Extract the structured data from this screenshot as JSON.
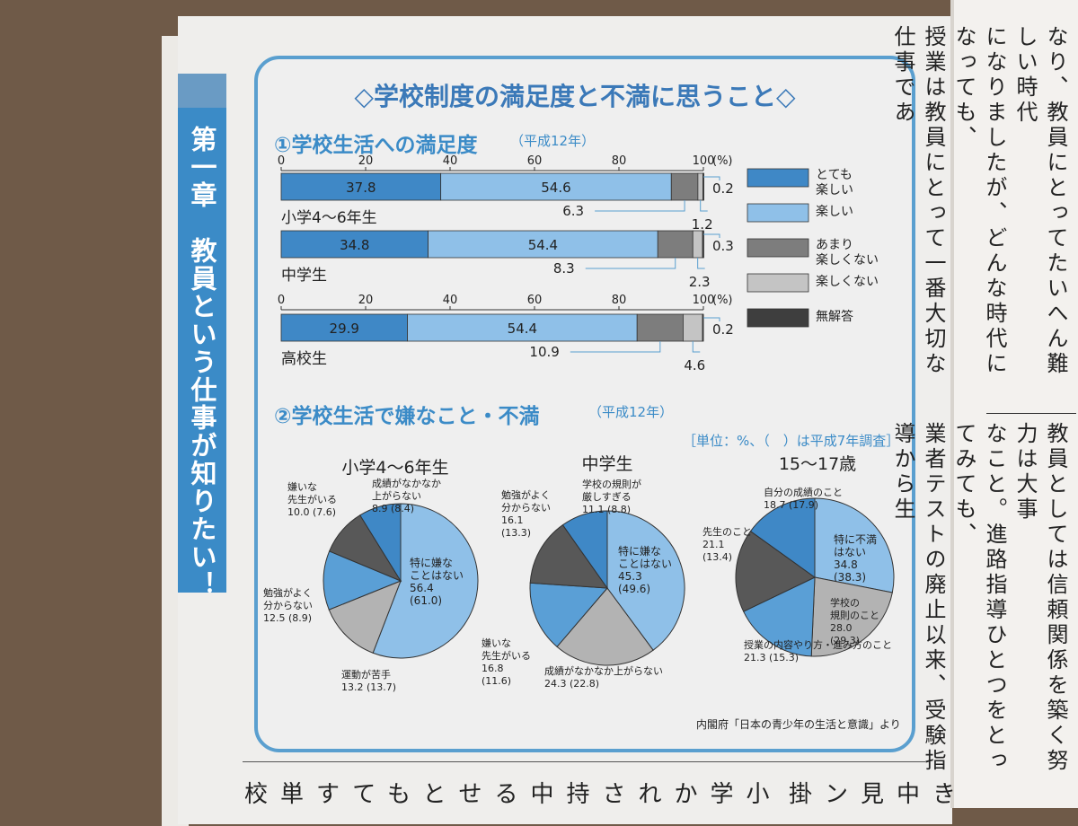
{
  "chapter_tab": {
    "text": "第一章　教員という仕事が知りたい！"
  },
  "main_title": "◇学校制度の満足度と不満に思うこと◇",
  "section1": {
    "title": "①学校生活への満足度",
    "note": "（平成12年）"
  },
  "section2": {
    "title": "②学校生活で嫌なこと・不満",
    "note": "（平成12年）",
    "unit": "［単位：%、（　）は平成7年調査］"
  },
  "source": "内閣府「日本の青少年の生活と意識」より",
  "colors": {
    "s1": "#3f88c6",
    "s2": "#8fc0e8",
    "s3": "#7d7d7d",
    "s4": "#c4c4c4",
    "s5": "#3e3e3e",
    "frame": "#5a9fcf"
  },
  "chart_data": [
    {
      "type": "bar",
      "orientation": "horizontal-stacked",
      "categories": [
        "小学4～6年生",
        "中学生",
        "高校生"
      ],
      "axis_ticks": [
        "0",
        "20",
        "40",
        "60",
        "80",
        "100"
      ],
      "axis_unit": "(%)",
      "xlim": [
        0,
        100
      ],
      "series": [
        {
          "name": "とても楽しい",
          "values": [
            37.8,
            34.8,
            29.9
          ]
        },
        {
          "name": "楽しい",
          "values": [
            54.6,
            54.4,
            54.4
          ]
        },
        {
          "name": "あまり楽しくない",
          "values": [
            6.3,
            8.3,
            10.9
          ]
        },
        {
          "name": "楽しくない",
          "values": [
            1.2,
            2.3,
            4.6
          ]
        },
        {
          "name": "無解答",
          "values": [
            0.2,
            0.3,
            0.2
          ]
        }
      ],
      "legend": [
        "とても楽しい",
        "楽しい",
        "あまり楽しくない",
        "楽しくない",
        "無解答"
      ],
      "legend_lines": [
        [
          "とても",
          "楽しい"
        ],
        [
          "楽しい"
        ],
        [
          "あまり",
          "楽しくない"
        ],
        [
          "楽しくない"
        ],
        [
          "無解答"
        ]
      ],
      "legend_position": "right",
      "value_labels": [
        {
          "inside": [
            "37.8",
            "54.6"
          ],
          "below": "6.3",
          "below_right": "1.2",
          "right": "0.2"
        },
        {
          "inside": [
            "34.8",
            "54.4"
          ],
          "below": "8.3",
          "below_right": "2.3",
          "right": "0.3"
        },
        {
          "inside": [
            "29.9",
            "54.4"
          ],
          "below": "10.9",
          "below_right": "4.6",
          "right": "0.2"
        }
      ]
    },
    {
      "type": "pie",
      "title": "小学4～6年生",
      "slices": [
        {
          "label": "特に嫌なことはない",
          "lines": [
            "特に嫌な",
            "ことはない",
            "56.4",
            "(61.0)"
          ],
          "value": 56.4,
          "prev": 61.0,
          "color": "#8fc0e8"
        },
        {
          "label": "運動が苦手",
          "lines": [
            "運動が苦手",
            "13.2 (13.7)"
          ],
          "value": 13.2,
          "prev": 13.7,
          "color": "#b3b3b3"
        },
        {
          "label": "勉強がよく分からない",
          "lines": [
            "勉強がよく",
            "分からない",
            "12.5 (8.9)"
          ],
          "value": 12.5,
          "prev": 8.9,
          "color": "#5a9fd6"
        },
        {
          "label": "嫌いな先生がいる",
          "lines": [
            "嫌いな",
            "先生がいる",
            "10.0 (7.6)"
          ],
          "value": 10.0,
          "prev": 7.6,
          "color": "#585858"
        },
        {
          "label": "成績がなかなか上がらない",
          "lines": [
            "成績がなかなか",
            "上がらない",
            "8.9 (8.4)"
          ],
          "value": 8.9,
          "prev": 8.4,
          "color": "#3f88c6"
        }
      ]
    },
    {
      "type": "pie",
      "title": "中学生",
      "slices": [
        {
          "label": "特に嫌なことはない",
          "lines": [
            "特に嫌な",
            "ことはない",
            "45.3",
            "(49.6)"
          ],
          "value": 45.3,
          "prev": 49.6,
          "color": "#8fc0e8"
        },
        {
          "label": "成績がなかなか上がらない",
          "lines": [
            "成績がなかなか上がらない",
            "24.3 (22.8)"
          ],
          "value": 24.3,
          "prev": 22.8,
          "color": "#b3b3b3"
        },
        {
          "label": "嫌いな先生がいる",
          "lines": [
            "嫌いな",
            "先生がいる",
            "16.8",
            "(11.6)"
          ],
          "value": 16.8,
          "prev": 11.6,
          "color": "#5a9fd6"
        },
        {
          "label": "勉強がよく分からない",
          "lines": [
            "勉強がよく",
            "分からない",
            "16.1",
            "(13.3)"
          ],
          "value": 16.1,
          "prev": 13.3,
          "color": "#585858"
        },
        {
          "label": "学校の規則が厳しすぎる",
          "lines": [
            "学校の規則が",
            "厳しすぎる",
            "11.1 (8.8)"
          ],
          "value": 11.1,
          "prev": 8.8,
          "color": "#3f88c6"
        }
      ]
    },
    {
      "type": "pie",
      "title": "15～17歳",
      "slices": [
        {
          "label": "特に不満はない",
          "lines": [
            "特に不満",
            "はない",
            "34.8",
            "(38.3)"
          ],
          "value": 34.8,
          "prev": 38.3,
          "color": "#8fc0e8"
        },
        {
          "label": "学校の規則のこと",
          "lines": [
            "学校の",
            "規則のこと",
            "28.0",
            "(29.3)"
          ],
          "value": 28.0,
          "prev": 29.3,
          "color": "#b3b3b3"
        },
        {
          "label": "授業の内容やり方・進み方のこと",
          "lines": [
            "授業の内容やり方・進み方のこと",
            "21.3 (15.3)"
          ],
          "value": 21.3,
          "prev": 15.3,
          "color": "#5a9fd6"
        },
        {
          "label": "先生のこと",
          "lines": [
            "先生のこと",
            "21.1",
            "(13.4)"
          ],
          "value": 21.1,
          "prev": 13.4,
          "color": "#585858"
        },
        {
          "label": "自分の成績のこと",
          "lines": [
            "自分の成績のこと",
            "18.7 (17.9)"
          ],
          "value": 18.7,
          "prev": 17.9,
          "color": "#3f88c6"
        }
      ]
    }
  ],
  "book_text": {
    "right_upper": [
      "なり、教員にとってたいへん難しい時代",
      "になりましたが、どんな時代になっても、",
      "授業は教員にとって一番大切な仕事であ"
    ],
    "right_lower": [
      "教員としては信頼関係を築く努力は大事",
      "なこと。進路指導ひとつをとってみても、",
      "業者テストの廃止以来、受験指導から生"
    ],
    "bottom_left": "校単すてもとせる中持されか学小",
    "bottom_right": "掛ン見中き"
  }
}
